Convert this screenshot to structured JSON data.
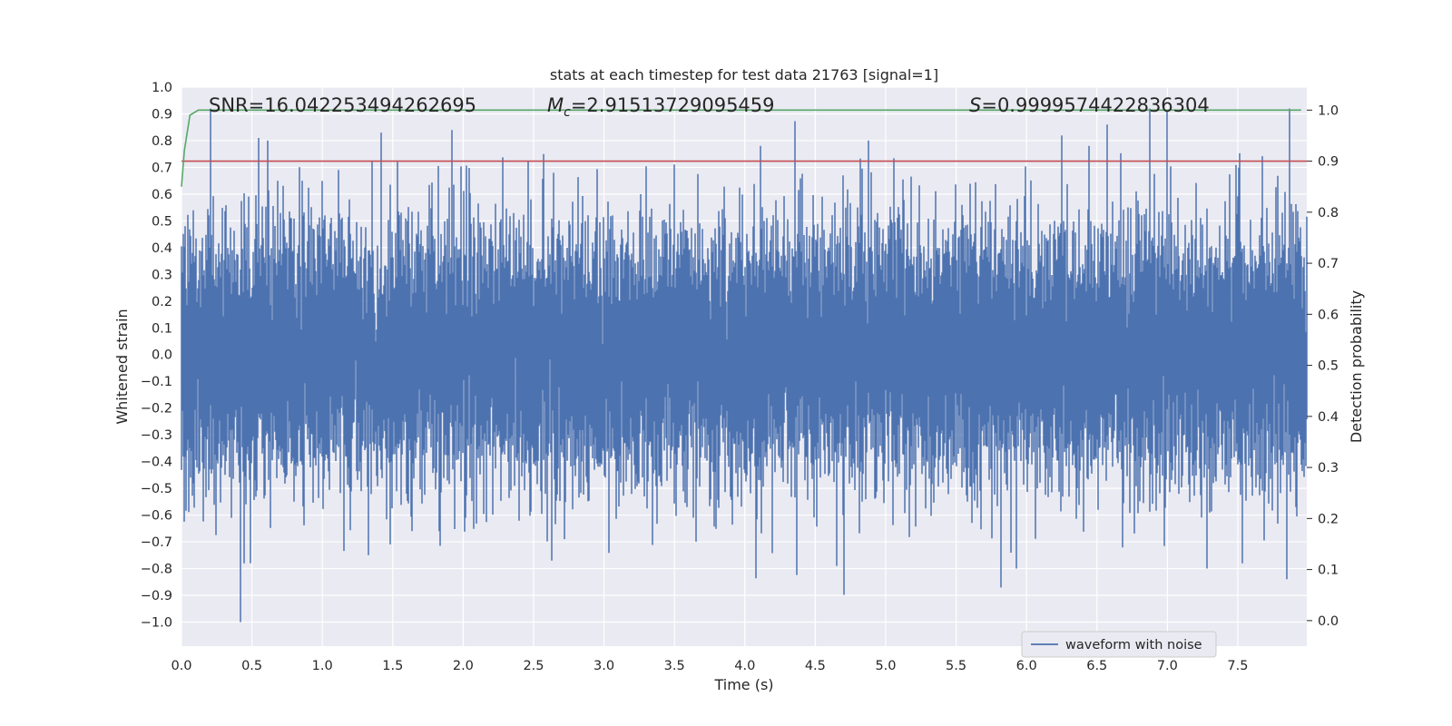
{
  "chart_data": {
    "type": "line",
    "title": "stats at each timestep for test data 21763 [signal=1]",
    "xlabel": "Time (s)",
    "ylabel": "Whitened strain",
    "y2label": "Detection probability",
    "xlim": [
      0.0,
      7.99
    ],
    "ylim": [
      -1.09,
      1.0
    ],
    "y2lim": [
      -0.05,
      1.045
    ],
    "grid": true,
    "background": "#eaeaf2",
    "grid_color": "#ffffff",
    "xticks": [
      "0.0",
      "0.5",
      "1.0",
      "1.5",
      "2.0",
      "2.5",
      "3.0",
      "3.5",
      "4.0",
      "4.5",
      "5.0",
      "5.5",
      "6.0",
      "6.5",
      "7.0",
      "7.5"
    ],
    "yticks": [
      "1.0",
      "0.9",
      "0.8",
      "0.7",
      "0.6",
      "0.5",
      "0.4",
      "0.3",
      "0.2",
      "0.1",
      "0.0",
      "−0.1",
      "−0.2",
      "−0.3",
      "−0.4",
      "−0.5",
      "−0.6",
      "−0.7",
      "−0.8",
      "−0.9",
      "−1.0"
    ],
    "y2ticks": [
      "1.0",
      "0.9",
      "0.8",
      "0.7",
      "0.6",
      "0.5",
      "0.4",
      "0.3",
      "0.2",
      "0.1",
      "0.0"
    ],
    "annotations": {
      "snr": "SNR=16.042253494262695",
      "mc_symbol": "M",
      "mc_sub": "c",
      "mc_value": "=2.91513729095459",
      "s_symbol": "S",
      "s_value": "=0.9999574422836304"
    },
    "series": [
      {
        "name": "waveform with noise",
        "axis": "left",
        "color": "#4c72b0",
        "kind": "noise",
        "sample_rate": 2048,
        "duration": 7.99,
        "envelope_max": 0.92,
        "envelope_min": -1.0,
        "typical_amplitude": 0.3,
        "notable_peaks": [
          {
            "t": 0.55,
            "v": 0.81
          },
          {
            "t": 0.61,
            "v": 0.8
          },
          {
            "t": 1.42,
            "v": 0.83
          },
          {
            "t": 1.92,
            "v": 0.84
          },
          {
            "t": 2.57,
            "v": 0.75
          },
          {
            "t": 4.11,
            "v": 0.78
          },
          {
            "t": 4.88,
            "v": 0.8
          },
          {
            "t": 6.57,
            "v": 0.86
          },
          {
            "t": 7.0,
            "v": 0.91
          },
          {
            "t": 7.87,
            "v": 0.92
          }
        ],
        "notable_troughs": [
          {
            "t": 0.42,
            "v": -1.0
          },
          {
            "t": 0.49,
            "v": -0.78
          },
          {
            "t": 1.33,
            "v": -0.75
          },
          {
            "t": 2.63,
            "v": -0.77
          },
          {
            "t": 4.65,
            "v": -0.79
          },
          {
            "t": 5.93,
            "v": -0.8
          },
          {
            "t": 7.28,
            "v": -0.8
          },
          {
            "t": 7.85,
            "v": -0.84
          }
        ]
      },
      {
        "name": "detection probability",
        "axis": "right",
        "color": "#55a868",
        "x": [
          0.0,
          0.02,
          0.06,
          0.12,
          0.2,
          1.0,
          2.0,
          3.0,
          4.0,
          5.0,
          6.0,
          7.0,
          7.95
        ],
        "y": [
          0.85,
          0.92,
          0.99,
          1.0,
          1.0,
          1.0,
          1.0,
          1.0,
          1.0,
          1.0,
          1.0,
          1.0,
          1.0
        ]
      },
      {
        "name": "threshold",
        "axis": "right",
        "color": "#c44e52",
        "x": [
          0.0,
          7.99
        ],
        "y": [
          0.9,
          0.9
        ]
      }
    ],
    "legend": {
      "position": "lower-right",
      "entries": [
        {
          "label": "waveform with noise",
          "color": "#4c72b0"
        }
      ]
    }
  }
}
